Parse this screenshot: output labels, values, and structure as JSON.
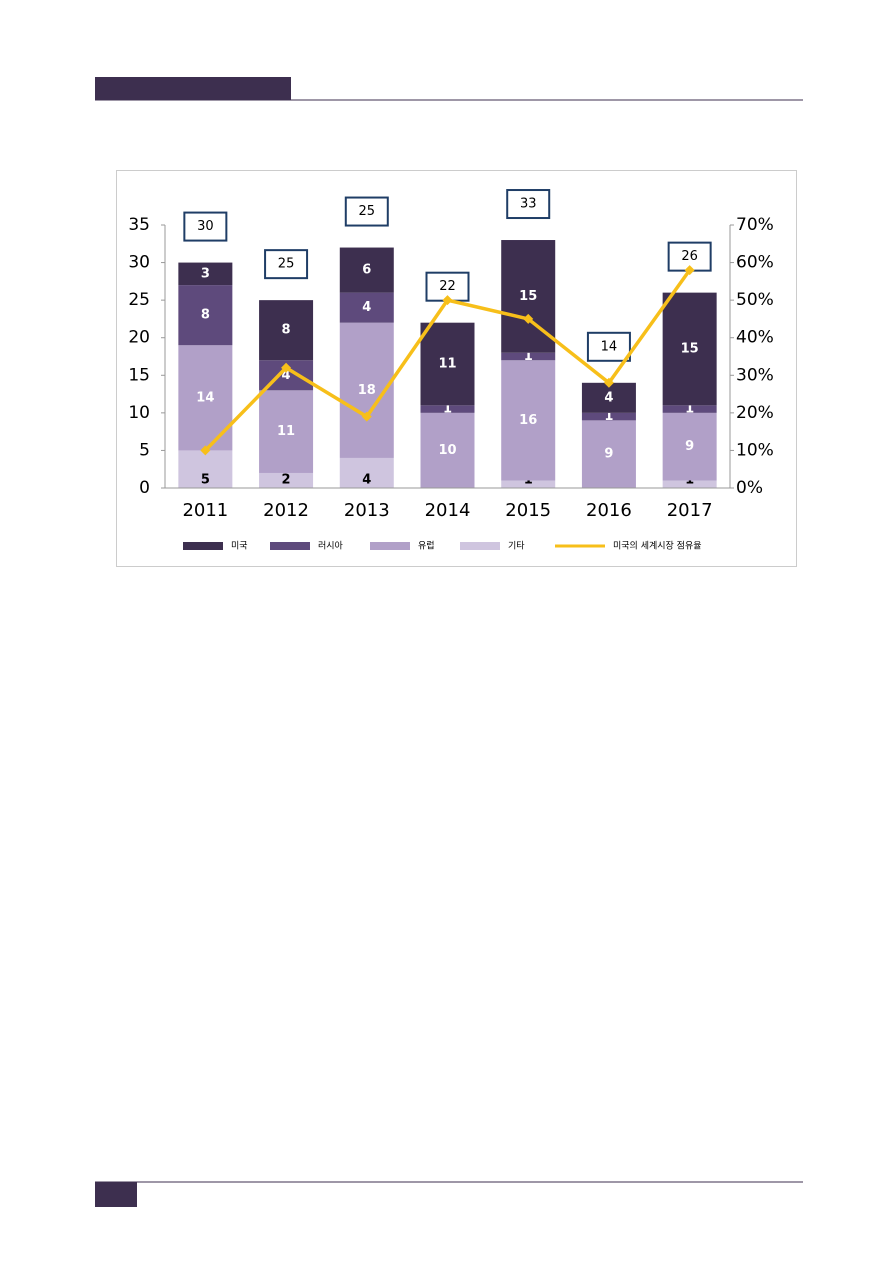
{
  "chart_data": {
    "type": "stacked-bar-line",
    "categories": [
      "2011",
      "2012",
      "2013",
      "2014",
      "2015",
      "2016",
      "2017"
    ],
    "series": [
      {
        "name": "미국",
        "color": "#3d2f4f",
        "values": [
          3,
          8,
          6,
          11,
          15,
          4,
          15
        ]
      },
      {
        "name": "러시아",
        "color": "#5e4a7c",
        "values": [
          8,
          4,
          4,
          1,
          1,
          1,
          1
        ]
      },
      {
        "name": "유럽",
        "color": "#b1a0c8",
        "values": [
          14,
          11,
          18,
          10,
          16,
          9,
          9
        ]
      },
      {
        "name": "기타",
        "color": "#cfc5df",
        "values": [
          5,
          2,
          4,
          0,
          1,
          0,
          1
        ]
      },
      {
        "name": "미국의 세계시장 점유율",
        "color": "#f7bf1a",
        "axis": "y2",
        "type": "line",
        "values": [
          10,
          32,
          19,
          50,
          45,
          28,
          58
        ]
      }
    ],
    "annotations": [
      "30",
      "25",
      "25",
      "22",
      "33",
      "14",
      "26"
    ],
    "ylim": [
      0,
      35
    ],
    "yticks": [
      0,
      5,
      10,
      15,
      20,
      25,
      30,
      35
    ],
    "y2lim": [
      0,
      70
    ],
    "y2ticks": [
      {
        "value": 0,
        "label": "0%"
      },
      {
        "value": 10,
        "label": "10%"
      },
      {
        "value": 20,
        "label": "20%"
      },
      {
        "value": 30,
        "label": "30%"
      },
      {
        "value": 40,
        "label": "40%"
      },
      {
        "value": 50,
        "label": "50%"
      },
      {
        "value": 60,
        "label": "60%"
      },
      {
        "value": 70,
        "label": "70%"
      }
    ],
    "grid": false
  }
}
